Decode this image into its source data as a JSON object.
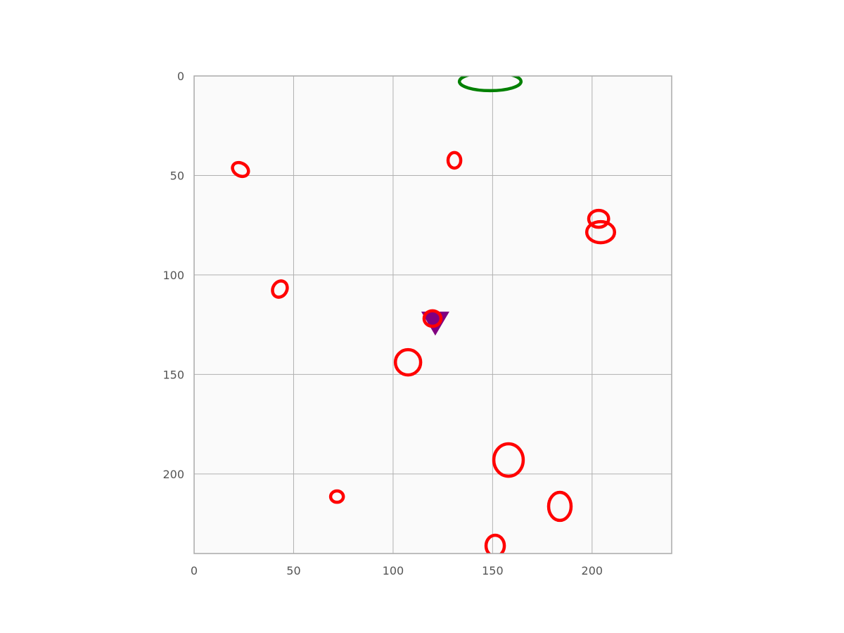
{
  "chart_data": {
    "type": "scatter",
    "xlim": [
      0,
      240
    ],
    "ylim": [
      240,
      0
    ],
    "xticks": [
      0,
      50,
      100,
      150,
      200
    ],
    "yticks": [
      0,
      50,
      100,
      150,
      200
    ],
    "grid": true,
    "ellipses": [
      {
        "x": 148.8,
        "y": 2.8,
        "width": 31,
        "height": 9.2,
        "angle": 0,
        "color": "#008000"
      },
      {
        "x": 23.3,
        "y": 47.0,
        "width": 8.5,
        "height": 6.4,
        "angle": 30,
        "color": "#ff0000"
      },
      {
        "x": 130.8,
        "y": 42.4,
        "width": 6.4,
        "height": 7.8,
        "angle": 0,
        "color": "#ff0000"
      },
      {
        "x": 203.3,
        "y": 71.8,
        "width": 10,
        "height": 8.5,
        "angle": 0,
        "color": "#ff0000"
      },
      {
        "x": 204.3,
        "y": 78.5,
        "width": 14,
        "height": 10.6,
        "angle": 0,
        "color": "#ff0000"
      },
      {
        "x": 43.1,
        "y": 107.1,
        "width": 7,
        "height": 8.5,
        "angle": 30,
        "color": "#ff0000"
      },
      {
        "x": 119.8,
        "y": 121.9,
        "width": 8.5,
        "height": 7.8,
        "angle": 0,
        "color": "#ff0000"
      },
      {
        "x": 107.5,
        "y": 143.9,
        "width": 12.7,
        "height": 12.7,
        "angle": 0,
        "color": "#ff0000"
      },
      {
        "x": 158.0,
        "y": 193.0,
        "width": 14.8,
        "height": 16.3,
        "angle": 0,
        "color": "#ff0000"
      },
      {
        "x": 71.8,
        "y": 211.4,
        "width": 6.4,
        "height": 5.7,
        "angle": 0,
        "color": "#ff0000"
      },
      {
        "x": 183.8,
        "y": 216.3,
        "width": 11.3,
        "height": 14.1,
        "angle": 0,
        "color": "#ff0000"
      },
      {
        "x": 151.3,
        "y": 236.1,
        "width": 9.2,
        "height": 10.6,
        "angle": 0,
        "color": "#ff0000"
      }
    ],
    "markers": [
      {
        "x": 121.2,
        "y": 122.7,
        "color": "#800080"
      }
    ]
  }
}
